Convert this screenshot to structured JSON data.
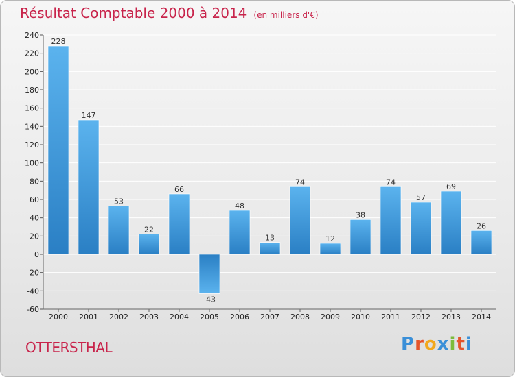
{
  "title": "Résultat Comptable 2000 à 2014",
  "subtitle": "(en milliers d'€)",
  "city": "OTTERSTHAL",
  "brand": "Proxiti",
  "colors": {
    "title": "#c8244b",
    "bar_top": "#5bb3ee",
    "bar_bottom": "#2a7fc4",
    "grid": "#ffffff"
  },
  "chart_data": {
    "type": "bar",
    "categories": [
      "2000",
      "2001",
      "2002",
      "2003",
      "2004",
      "2005",
      "2006",
      "2007",
      "2008",
      "2009",
      "2010",
      "2011",
      "2012",
      "2013",
      "2014"
    ],
    "values": [
      228,
      147,
      53,
      22,
      66,
      -43,
      48,
      13,
      74,
      12,
      38,
      74,
      57,
      69,
      26
    ],
    "ylim": [
      -60,
      240
    ],
    "yticks": [
      -60,
      -40,
      -20,
      0,
      20,
      40,
      60,
      80,
      100,
      120,
      140,
      160,
      180,
      200,
      220,
      240
    ],
    "grid": true
  }
}
